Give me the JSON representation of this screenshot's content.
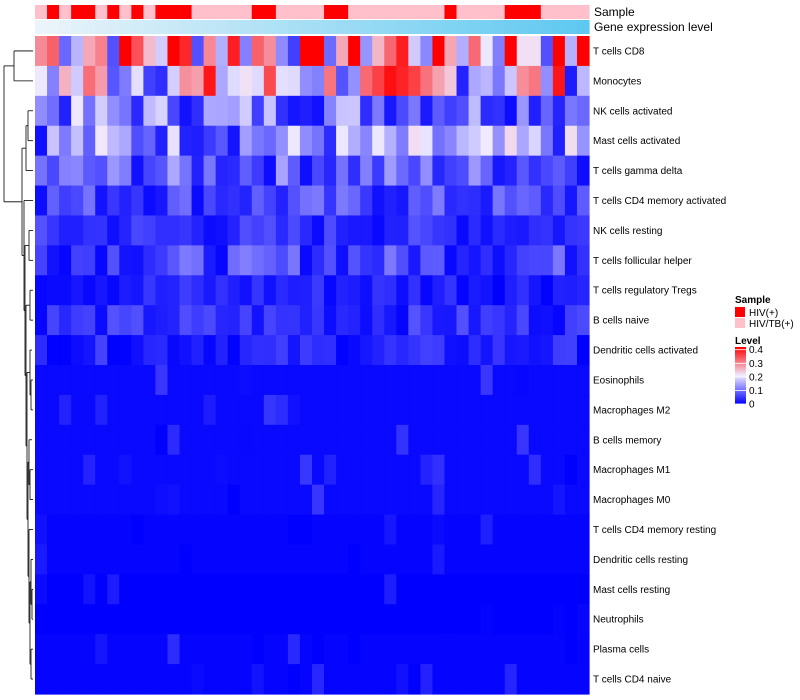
{
  "chart_data": {
    "type": "heatmap",
    "title": "",
    "annotations": {
      "sample_label": "Sample",
      "expression_label": "Gene expression level"
    },
    "rows": [
      "T cells CD8",
      "Monocytes",
      "NK cells activated",
      "Mast cells activated",
      "T cells gamma delta",
      "T cells CD4 memory activated",
      "NK cells resting",
      "T cells follicular helper",
      "T cells regulatory  Tregs",
      "B cells naive",
      "Dendritic cells activated",
      "Eosinophils",
      "Macrophages M2",
      "B cells memory",
      "Macrophages M1",
      "Macrophages M0",
      "T cells CD4 memory resting",
      "Dendritic cells resting",
      "Mast cells resting",
      "Neutrophils",
      "Plasma cells",
      "T cells CD4 naive"
    ],
    "n_columns": 46,
    "sample_groups": [
      1,
      0,
      1,
      0,
      0,
      1,
      0,
      1,
      0,
      1,
      0,
      0,
      0,
      1,
      1,
      1,
      1,
      1,
      0,
      0,
      1,
      1,
      1,
      1,
      0,
      0,
      1,
      1,
      1,
      1,
      1,
      1,
      1,
      1,
      0,
      1,
      1,
      1,
      1,
      0,
      0,
      0,
      1,
      1,
      1,
      1
    ],
    "expression_level": [
      0.0,
      0.02,
      0.04,
      0.07,
      0.09,
      0.11,
      0.13,
      0.16,
      0.18,
      0.2,
      0.22,
      0.24,
      0.27,
      0.29,
      0.31,
      0.33,
      0.36,
      0.38,
      0.4,
      0.42,
      0.44,
      0.47,
      0.49,
      0.51,
      0.53,
      0.56,
      0.58,
      0.6,
      0.62,
      0.64,
      0.67,
      0.69,
      0.71,
      0.73,
      0.76,
      0.78,
      0.8,
      0.82,
      0.84,
      0.87,
      0.89,
      0.91,
      0.93,
      0.96,
      0.98,
      1.0
    ],
    "row_mean_levels": [
      0.3,
      0.22,
      0.11,
      0.12,
      0.08,
      0.06,
      0.04,
      0.06,
      0.03,
      0.04,
      0.03,
      0.02,
      0.02,
      0.02,
      0.02,
      0.02,
      0.01,
      0.01,
      0.0,
      0.0,
      0.01,
      0.01
    ],
    "legend": {
      "sample": {
        "title": "Sample",
        "items": [
          {
            "label": "HIV(+)",
            "color": "#ff0000"
          },
          {
            "label": "HIV/TB(+)",
            "color": "#ffc0cb"
          }
        ]
      },
      "level": {
        "title": "Level",
        "ticks": [
          "0.4",
          "0.3",
          "0.2",
          "0.1",
          "0"
        ],
        "tick_values": [
          0.4,
          0.3,
          0.2,
          0.1,
          0
        ],
        "range": [
          0,
          0.42
        ],
        "colors": {
          "low": "#0000ff",
          "mid": "#f0eaff",
          "high": "#ff0000"
        }
      }
    }
  }
}
